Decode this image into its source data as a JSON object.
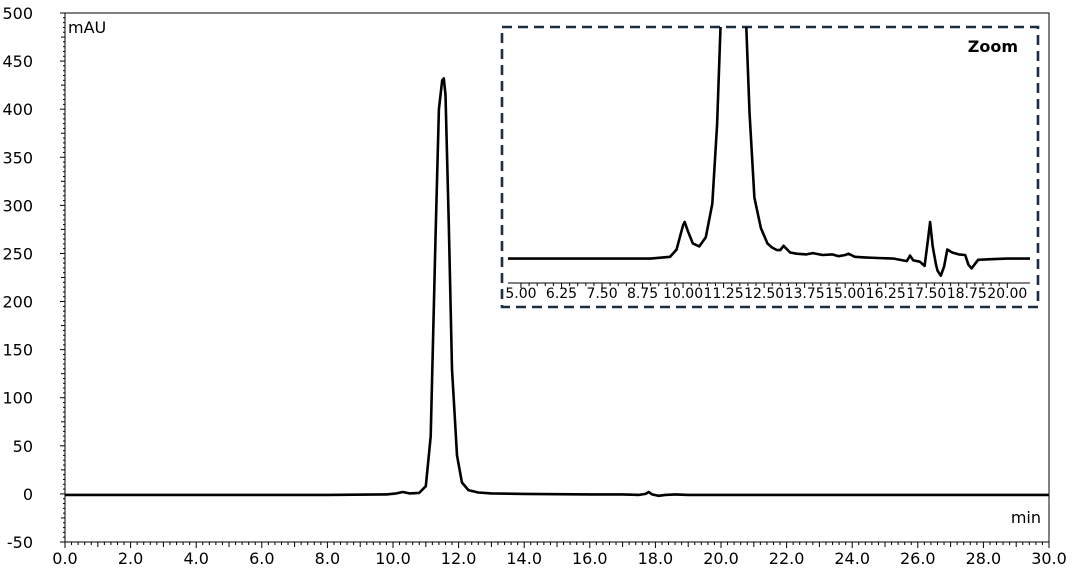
{
  "chart_data": {
    "type": "line",
    "main": {
      "ylabel": "mAU",
      "xlabel": "min",
      "xlim": [
        0,
        30
      ],
      "ylim": [
        -50,
        500
      ],
      "x_ticks": [
        "0.0",
        "2.0",
        "4.0",
        "6.0",
        "8.0",
        "10.0",
        "12.0",
        "14.0",
        "16.0",
        "18.0",
        "20.0",
        "22.0",
        "24.0",
        "26.0",
        "28.0",
        "30.0"
      ],
      "y_ticks": [
        "500",
        "450",
        "400",
        "350",
        "300",
        "250",
        "200",
        "150",
        "100",
        "50",
        "0",
        "-50"
      ],
      "series": [
        {
          "x": [
            0.0,
            2.0,
            4.0,
            6.0,
            8.0,
            9.8,
            10.1,
            10.3,
            10.5,
            10.8,
            11.0,
            11.15,
            11.3,
            11.4,
            11.5,
            11.55,
            11.6,
            11.7,
            11.8,
            11.95,
            12.1,
            12.3,
            12.6,
            13.0,
            14.0,
            16.0,
            17.0,
            17.5,
            17.7,
            17.8,
            17.9,
            18.1,
            18.3,
            18.6,
            19.0,
            22.0,
            26.0,
            30.0
          ],
          "y": [
            -1,
            -1,
            -1,
            -1,
            -1,
            -0.5,
            0.5,
            2,
            0.5,
            1,
            8,
            60,
            270,
            400,
            430,
            432,
            415,
            280,
            130,
            40,
            12,
            4,
            1.5,
            0.5,
            0,
            -0.5,
            -0.5,
            -1,
            0,
            2,
            -0.5,
            -2,
            -1,
            -0.5,
            -1,
            -1,
            -1,
            -1
          ]
        }
      ]
    },
    "inset": {
      "title": "Zoom",
      "xlim": [
        4.6,
        20.7
      ],
      "ylim": [
        -4,
        38
      ],
      "x_ticks": [
        "5.00",
        "6.25",
        "7.50",
        "8.75",
        "10.00",
        "11.25",
        "12.50",
        "13.75",
        "15.00",
        "16.25",
        "17.50",
        "18.75",
        "20.00"
      ],
      "series": [
        {
          "x": [
            4.6,
            6.0,
            7.5,
            9.0,
            9.6,
            9.8,
            9.9,
            10.0,
            10.05,
            10.15,
            10.3,
            10.5,
            10.7,
            10.9,
            11.05,
            11.2,
            11.9,
            12.05,
            12.2,
            12.4,
            12.6,
            12.75,
            12.9,
            13.0,
            13.1,
            13.3,
            13.5,
            13.8,
            14.0,
            14.3,
            14.6,
            14.8,
            15.0,
            15.1,
            15.3,
            15.6,
            16.0,
            16.5,
            16.9,
            17.0,
            17.1,
            17.3,
            17.45,
            17.55,
            17.62,
            17.7,
            17.8,
            17.85,
            17.95,
            18.05,
            18.15,
            18.3,
            18.5,
            18.7,
            18.8,
            18.9,
            19.1,
            19.5,
            20.0,
            20.7
          ],
          "y": [
            0,
            0,
            0,
            0,
            0.3,
            1.5,
            3.5,
            5.5,
            6.0,
            4.5,
            2.5,
            2.0,
            3.5,
            9,
            22,
            45,
            45,
            24,
            10,
            5,
            2.5,
            1.8,
            1.4,
            1.4,
            2.1,
            1.0,
            0.8,
            0.7,
            0.9,
            0.6,
            0.7,
            0.4,
            0.6,
            0.8,
            0.3,
            0.2,
            0.1,
            0.0,
            -0.4,
            0.5,
            -0.3,
            -0.5,
            -1.2,
            3.0,
            6.0,
            2.0,
            -1.0,
            -2.0,
            -2.8,
            -1.3,
            1.5,
            1.0,
            0.7,
            0.6,
            -1.0,
            -1.6,
            -0.2,
            -0.1,
            0.0,
            0.0
          ]
        }
      ]
    }
  }
}
